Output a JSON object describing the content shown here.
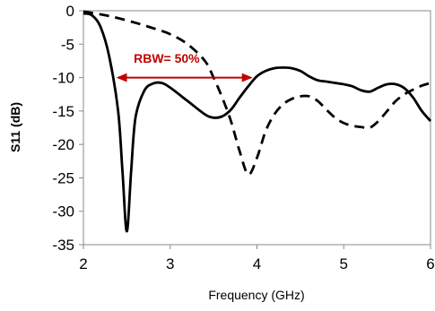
{
  "chart_data": {
    "type": "line",
    "xlabel": "Frequency (GHz)",
    "ylabel": "S11 (dB)",
    "xlim": [
      2,
      6
    ],
    "ylim": [
      -35,
      0
    ],
    "x_ticks": [
      "2",
      "3",
      "4",
      "5",
      "6"
    ],
    "y_ticks": [
      "0",
      "-5",
      "-10",
      "-15",
      "-20",
      "-25",
      "-30",
      "-35"
    ],
    "grid": false,
    "series": [
      {
        "style": "solid",
        "color": "#000000",
        "points": [
          [
            2.0,
            -0.4
          ],
          [
            2.1,
            -0.7
          ],
          [
            2.2,
            -2.5
          ],
          [
            2.3,
            -7.0
          ],
          [
            2.4,
            -15.0
          ],
          [
            2.45,
            -24.0
          ],
          [
            2.5,
            -33.0
          ],
          [
            2.55,
            -24.0
          ],
          [
            2.6,
            -16.0
          ],
          [
            2.7,
            -12.0
          ],
          [
            2.8,
            -10.9
          ],
          [
            2.9,
            -10.8
          ],
          [
            3.0,
            -11.5
          ],
          [
            3.2,
            -13.5
          ],
          [
            3.4,
            -15.5
          ],
          [
            3.5,
            -16.0
          ],
          [
            3.6,
            -15.8
          ],
          [
            3.7,
            -14.8
          ],
          [
            3.8,
            -13.0
          ],
          [
            3.9,
            -11.3
          ],
          [
            4.0,
            -9.8
          ],
          [
            4.1,
            -9.0
          ],
          [
            4.2,
            -8.6
          ],
          [
            4.3,
            -8.5
          ],
          [
            4.4,
            -8.6
          ],
          [
            4.5,
            -9.0
          ],
          [
            4.6,
            -9.8
          ],
          [
            4.7,
            -10.4
          ],
          [
            4.8,
            -10.6
          ],
          [
            4.9,
            -10.8
          ],
          [
            5.0,
            -11.0
          ],
          [
            5.1,
            -11.3
          ],
          [
            5.2,
            -11.9
          ],
          [
            5.3,
            -12.1
          ],
          [
            5.4,
            -11.5
          ],
          [
            5.5,
            -11.0
          ],
          [
            5.6,
            -11.0
          ],
          [
            5.7,
            -11.6
          ],
          [
            5.8,
            -13.0
          ],
          [
            5.9,
            -15.0
          ],
          [
            6.0,
            -16.5
          ]
        ]
      },
      {
        "style": "dashed",
        "color": "#000000",
        "points": [
          [
            2.0,
            -0.1
          ],
          [
            2.3,
            -0.8
          ],
          [
            2.6,
            -1.8
          ],
          [
            2.8,
            -2.6
          ],
          [
            3.0,
            -3.5
          ],
          [
            3.2,
            -5.0
          ],
          [
            3.4,
            -7.5
          ],
          [
            3.5,
            -10.0
          ],
          [
            3.6,
            -13.0
          ],
          [
            3.7,
            -16.5
          ],
          [
            3.8,
            -21.0
          ],
          [
            3.9,
            -24.5
          ],
          [
            4.0,
            -22.0
          ],
          [
            4.1,
            -18.0
          ],
          [
            4.2,
            -15.5
          ],
          [
            4.3,
            -14.0
          ],
          [
            4.4,
            -13.2
          ],
          [
            4.5,
            -12.8
          ],
          [
            4.6,
            -12.8
          ],
          [
            4.7,
            -13.5
          ],
          [
            4.8,
            -14.8
          ],
          [
            4.9,
            -16.0
          ],
          [
            5.0,
            -16.8
          ],
          [
            5.1,
            -17.2
          ],
          [
            5.2,
            -17.4
          ],
          [
            5.3,
            -17.5
          ],
          [
            5.4,
            -16.5
          ],
          [
            5.5,
            -15.0
          ],
          [
            5.6,
            -13.5
          ],
          [
            5.7,
            -12.5
          ],
          [
            5.8,
            -11.8
          ],
          [
            5.9,
            -11.2
          ],
          [
            6.0,
            -10.8
          ]
        ]
      }
    ],
    "annotations": [
      {
        "text": "RBW= 50%",
        "color": "#c00000",
        "arrow": {
          "x1": 2.4,
          "x2": 3.93,
          "y": -10
        },
        "label_x": 2.96,
        "label_y": -7.8
      }
    ]
  }
}
